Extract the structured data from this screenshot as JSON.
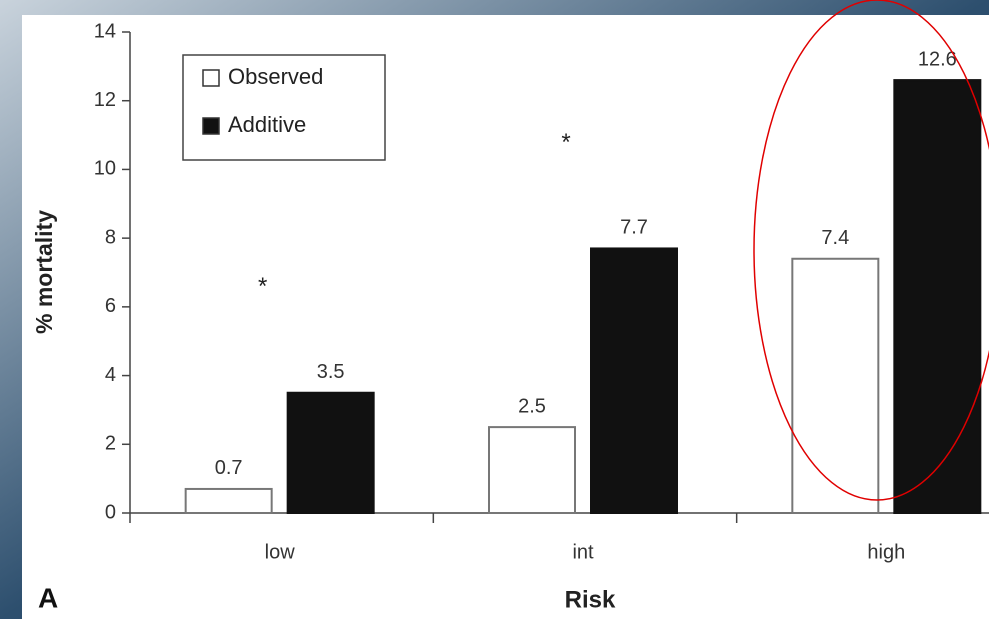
{
  "chart_data": {
    "type": "bar",
    "categories": [
      "low",
      "int",
      "high"
    ],
    "series": [
      {
        "name": "Observed",
        "color": "#ffffff",
        "values": [
          0.7,
          2.5,
          7.4
        ]
      },
      {
        "name": "Additive",
        "color": "#111111",
        "values": [
          3.5,
          7.7,
          12.6
        ]
      }
    ],
    "significance": [
      "*",
      "*",
      null
    ],
    "ylim": [
      0,
      14
    ],
    "yticks": [
      0,
      2,
      4,
      6,
      8,
      10,
      12,
      14
    ],
    "ylabel": "% mortality",
    "xlabel": "Risk",
    "panel_label": "A",
    "legend": "upper left",
    "grid": false
  }
}
